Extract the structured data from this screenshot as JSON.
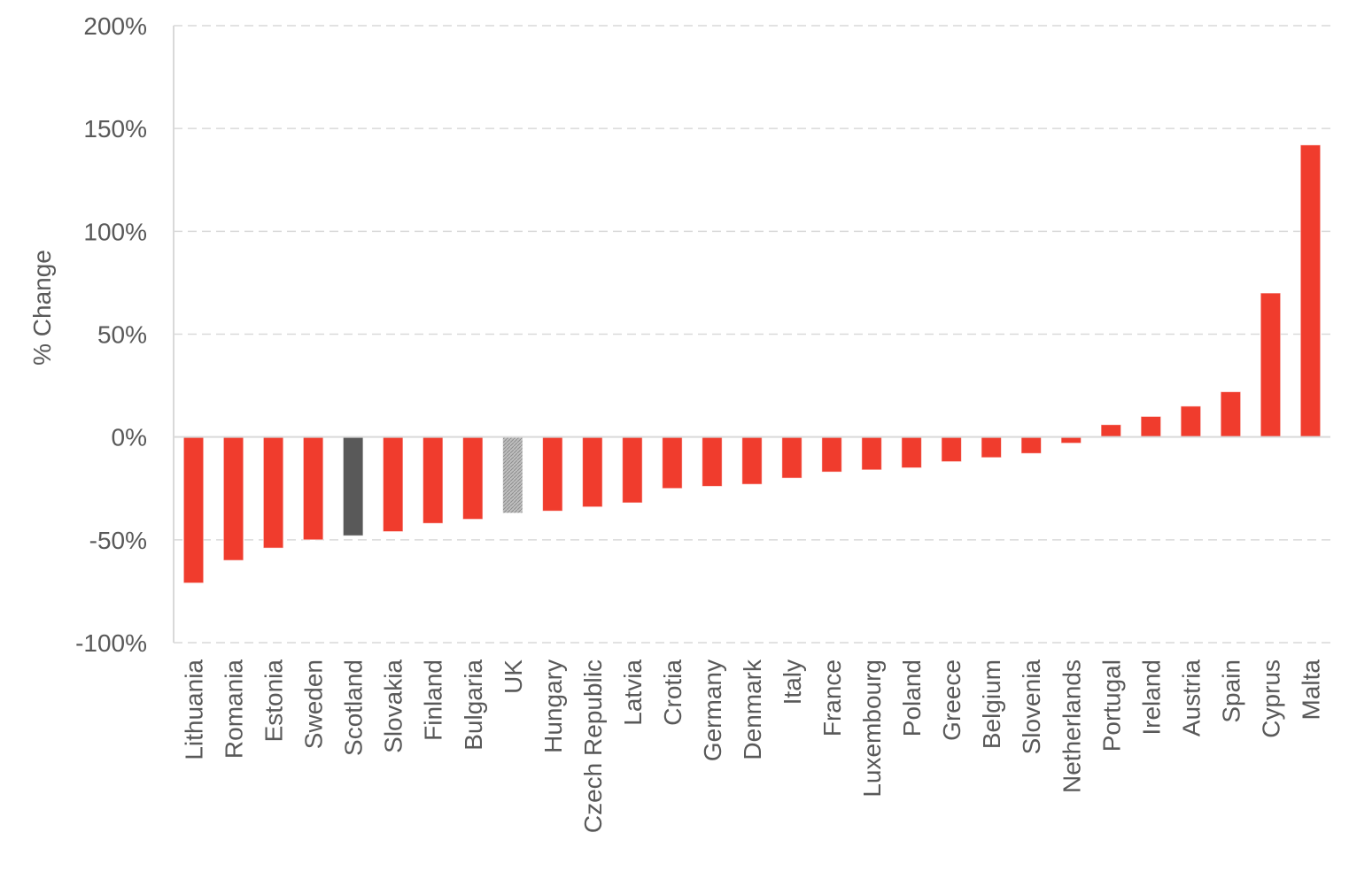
{
  "chart_data": {
    "type": "bar",
    "title": "",
    "xlabel": "",
    "ylabel": "% Change",
    "ylim": [
      -100,
      200
    ],
    "yticks": [
      -100,
      -50,
      0,
      50,
      100,
      150,
      200
    ],
    "ytick_labels": [
      "-100%",
      "-50%",
      "0%",
      "50%",
      "100%",
      "150%",
      "200%"
    ],
    "grid": true,
    "legend": "none",
    "categories": [
      "Lithuania",
      "Romania",
      "Estonia",
      "Sweden",
      "Scotland",
      "Slovakia",
      "Finland",
      "Bulgaria",
      "UK",
      "Hungary",
      "Czech Republic",
      "Latvia",
      "Crotia",
      "Germany",
      "Denmark",
      "Italy",
      "France",
      "Luxembourg",
      "Poland",
      "Greece",
      "Belgium",
      "Slovenia",
      "Netherlands",
      "Portugal",
      "Ireland",
      "Austria",
      "Spain",
      "Cyprus",
      "Malta"
    ],
    "values": [
      -71,
      -60,
      -54,
      -50,
      -48,
      -46,
      -42,
      -40,
      -37,
      -36,
      -34,
      -32,
      -25,
      -24,
      -23,
      -20,
      -17,
      -16,
      -15,
      -12,
      -10,
      -8,
      -3,
      6,
      10,
      15,
      22,
      70,
      142
    ],
    "colors": {
      "default": "#f03c2d",
      "Scotland": "#595959",
      "UK": "#a6a6a6"
    }
  }
}
